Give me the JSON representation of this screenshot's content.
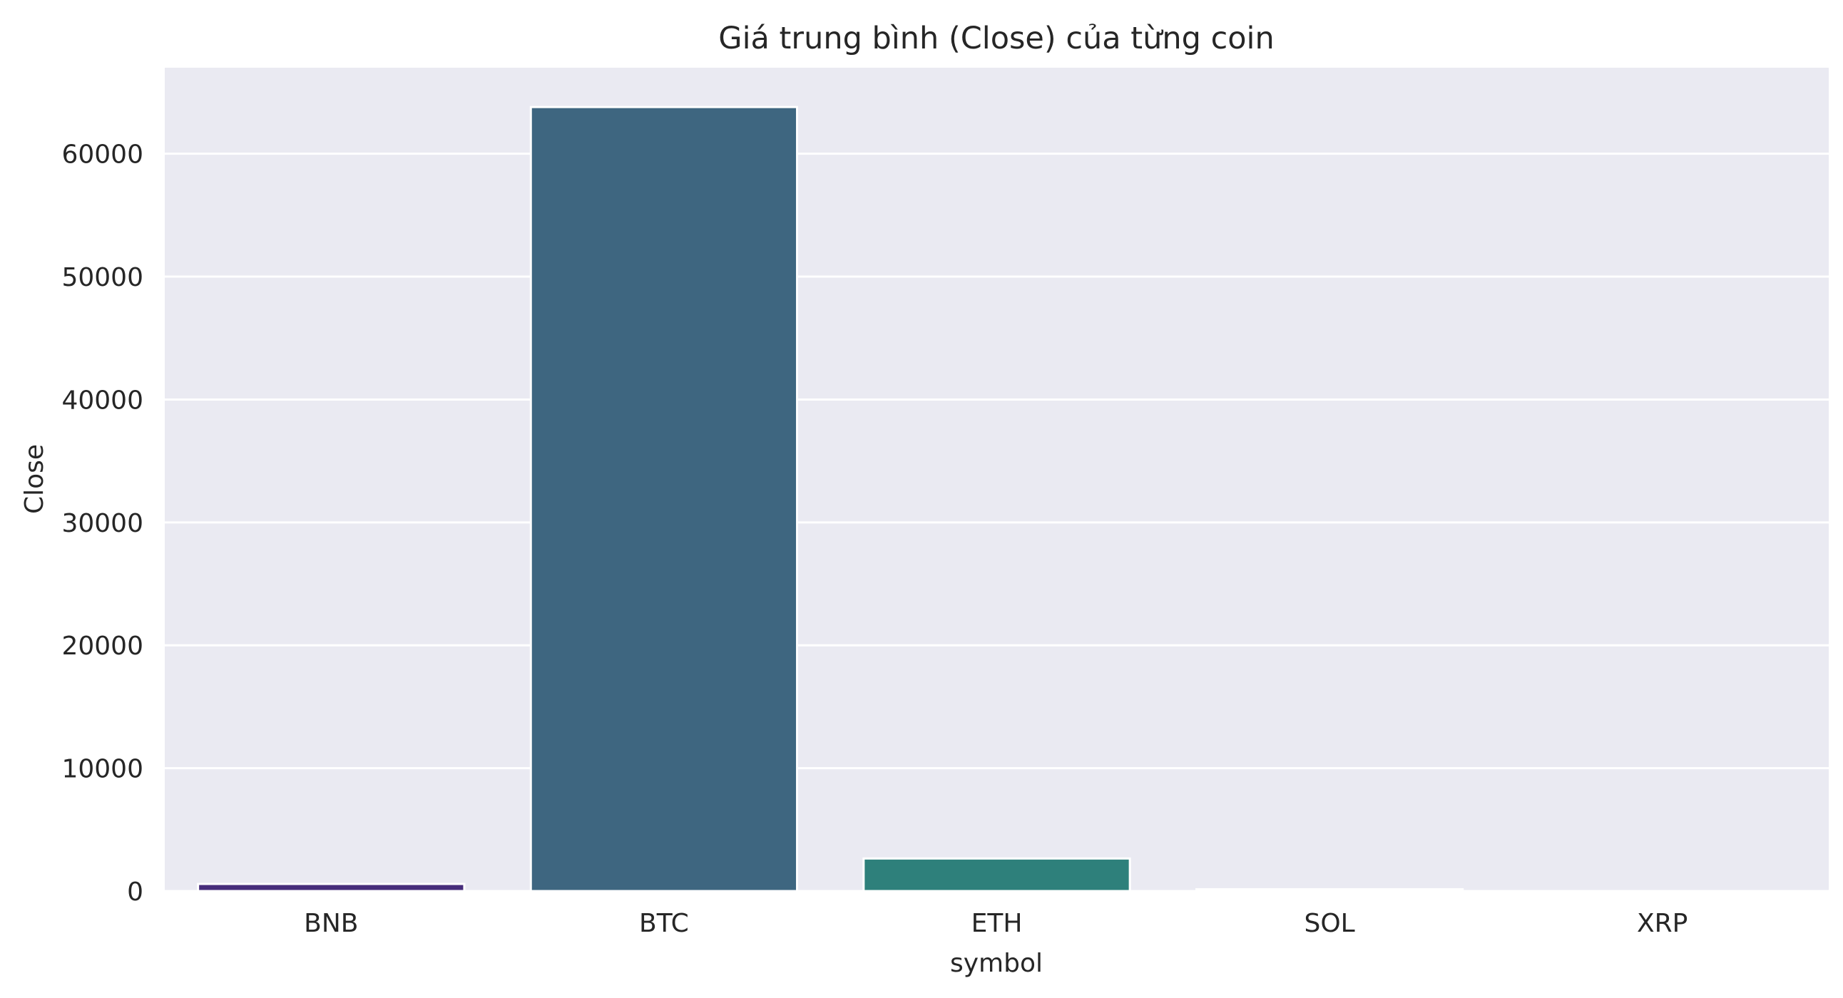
{
  "chart_data": {
    "type": "bar",
    "title": "Giá trung bình (Close) của từng coin",
    "xlabel": "symbol",
    "ylabel": "Close",
    "categories": [
      "BNB",
      "BTC",
      "ETH",
      "SOL",
      "XRP"
    ],
    "values": [
      580,
      63800,
      2650,
      150,
      0.55
    ],
    "colors": [
      "#472d7b",
      "#3e6680",
      "#2e807b",
      "#35b779",
      "#fde725"
    ],
    "ylim": [
      0,
      67000
    ],
    "yticks": [
      0,
      10000,
      20000,
      30000,
      40000,
      50000,
      60000
    ],
    "ytick_labels": [
      "0",
      "10000",
      "20000",
      "30000",
      "40000",
      "50000",
      "60000"
    ],
    "grid": true,
    "legend": "none",
    "style": {
      "axes_background": "#eaeaf2",
      "grid_color": "#ffffff",
      "bar_edge_color": "#ffffff",
      "text_color": "#262626"
    }
  }
}
